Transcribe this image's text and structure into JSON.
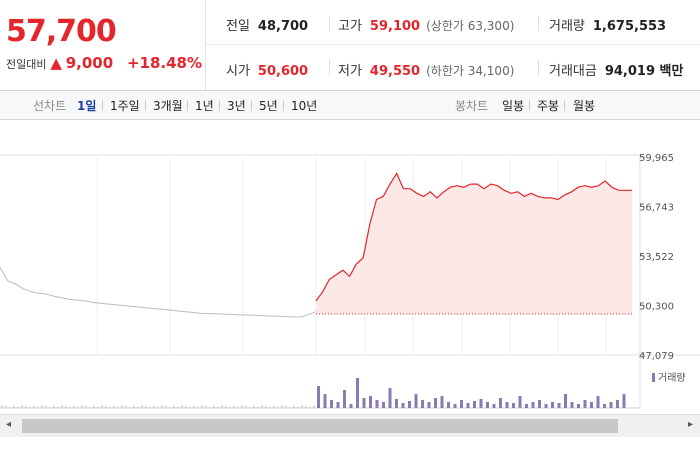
{
  "quote": {
    "price": "57,700",
    "change_label": "전일대비",
    "change_arrow": "▲",
    "change_value": "9,000",
    "change_pct": "+18.48%"
  },
  "stats": [
    {
      "key": "전일",
      "value": "48,700",
      "color": "black",
      "note": ""
    },
    {
      "key": "고가",
      "value": "59,100",
      "color": "red",
      "note": "(상한가 63,300)"
    },
    {
      "key": "거래량",
      "value": "1,675,553",
      "color": "black",
      "note": ""
    },
    {
      "key": "시가",
      "value": "50,600",
      "color": "red",
      "note": ""
    },
    {
      "key": "저가",
      "value": "49,550",
      "color": "red",
      "note": "(하한가 34,100)"
    },
    {
      "key": "거래대금",
      "value": "94,019 백만",
      "color": "black",
      "note": ""
    }
  ],
  "toolbar": {
    "line_label": "선차트",
    "periods": [
      "1일",
      "1주일",
      "3개월",
      "1년",
      "3년",
      "5년",
      "10년"
    ],
    "active_period": "1일",
    "candle_label": "봉차트",
    "candles": [
      "일봉",
      "주봉",
      "월봉"
    ]
  },
  "chart_data": {
    "type": "line",
    "series": [
      {
        "values": [
          52800,
          51900,
          51700,
          51400,
          51200,
          51100,
          51050,
          50900,
          50800,
          50700,
          50650,
          50600,
          50500,
          50450,
          50400,
          50350,
          50300,
          50250,
          50200,
          50150,
          50100,
          50050,
          50000,
          49950,
          49900,
          49850,
          49800,
          49780,
          49760,
          49740,
          49720,
          49700,
          49680,
          49660,
          49640,
          49620,
          49600,
          49580,
          49560,
          49550,
          49700,
          49900
        ],
        "color": "#bbbbbb"
      },
      {
        "values": [
          50600,
          51200,
          52000,
          52300,
          52600,
          52200,
          53000,
          53400,
          55600,
          57200,
          57400,
          58200,
          58900,
          57900,
          57900,
          57600,
          57400,
          57700,
          57300,
          57700,
          58000,
          58100,
          58000,
          58200,
          58200,
          57900,
          58200,
          58100,
          57800,
          57600,
          57700,
          57400,
          57600,
          57400,
          57300,
          57300,
          57200,
          57500,
          57700,
          58000,
          58100,
          58000,
          58100,
          58400,
          58000,
          57800,
          57800,
          57800
        ],
        "color": "#e4252b"
      }
    ],
    "y_ticks": [
      "59,965",
      "56,743",
      "53,522",
      "50,300",
      "47,079"
    ],
    "ylim": [
      47079,
      59965
    ],
    "reference_price": 49750,
    "volume_label": "거래량",
    "colors": {
      "up": "#e4252b",
      "old": "#bbbbbb",
      "volume": "#8a7bb3"
    }
  },
  "scrollbar": {
    "left_arrow": "◂",
    "right_arrow": "▸"
  }
}
